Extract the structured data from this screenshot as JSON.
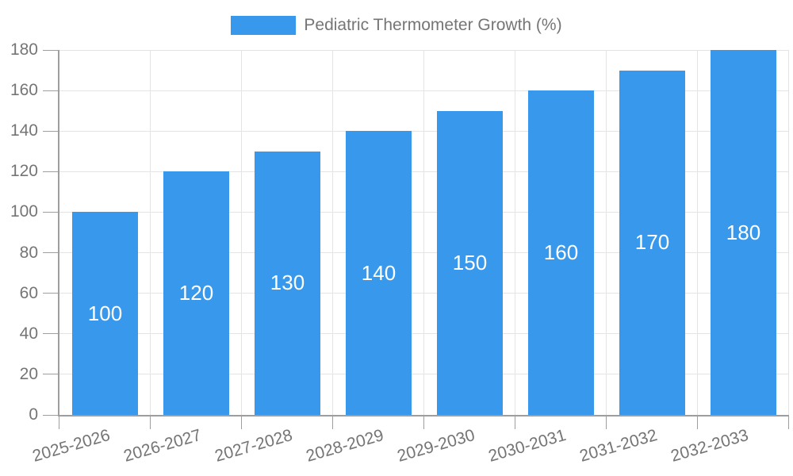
{
  "chart_data": {
    "type": "bar",
    "title": "Pediatric Thermometer Growth (%)",
    "categories": [
      "2025-2026",
      "2026-2027",
      "2027-2028",
      "2028-2029",
      "2029-2030",
      "2030-2031",
      "2031-2032",
      "2032-2033"
    ],
    "values": [
      100,
      120,
      130,
      140,
      150,
      160,
      170,
      180
    ],
    "xlabel": "",
    "ylabel": "",
    "ylim": [
      0,
      180
    ],
    "yticks": [
      0,
      20,
      40,
      60,
      80,
      100,
      120,
      140,
      160,
      180
    ],
    "grid": true,
    "legend_position": "top",
    "bar_labels_visible": true
  },
  "colors": {
    "bar": "#3899ec",
    "bar_label": "#ffffff",
    "axis_text": "#757575",
    "axis_line": "#9e9e9e",
    "tick": "#9e9e9e",
    "gridline": "#e4e4e4",
    "background": "#ffffff"
  }
}
